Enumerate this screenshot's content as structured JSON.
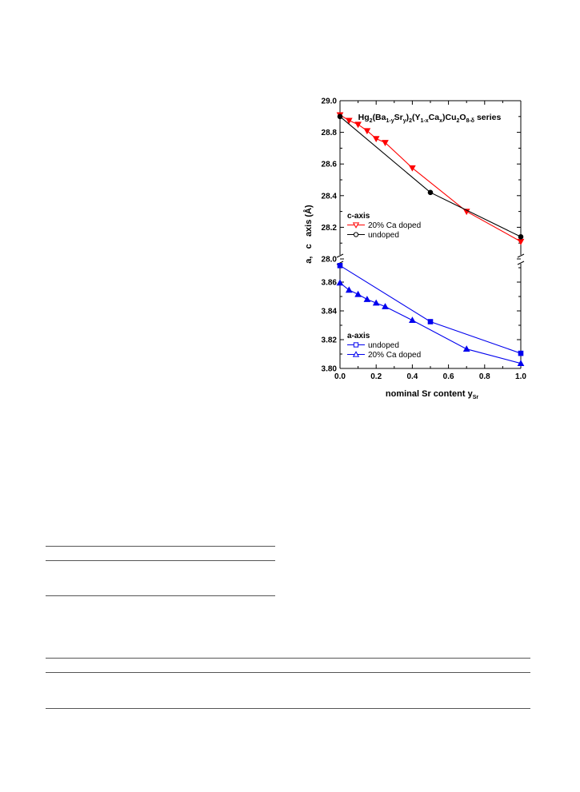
{
  "chart_data": {
    "type": "line",
    "title": {
      "parts": [
        {
          "t": "Hg"
        },
        {
          "t": "2",
          "sub": true
        },
        {
          "t": "(Ba"
        },
        {
          "t": "1-y",
          "sub": true
        },
        {
          "t": "Sr"
        },
        {
          "t": "y",
          "sub": true
        },
        {
          "t": ")"
        },
        {
          "t": "2",
          "sub": true
        },
        {
          "t": "(Y"
        },
        {
          "t": "1-x",
          "sub": true
        },
        {
          "t": "Ca"
        },
        {
          "t": "x",
          "sub": true
        },
        {
          "t": ")Cu"
        },
        {
          "t": "2",
          "sub": true
        },
        {
          "t": "O"
        },
        {
          "t": "8-δ",
          "sub": true
        },
        {
          "t": " series"
        }
      ]
    },
    "xlabel": "nominal Sr content y",
    "xlabel_sub": "Sr",
    "ylabel": "a,   c   axis (Å)",
    "xlim": [
      0.0,
      1.0
    ],
    "x_ticks": [
      "0.0",
      "0.2",
      "0.4",
      "0.6",
      "0.8",
      "1.0"
    ],
    "x_tick_values": [
      0.0,
      0.2,
      0.4,
      0.6,
      0.8,
      1.0
    ],
    "panels": [
      {
        "id": "c-axis",
        "ylim": [
          28.0,
          29.0
        ],
        "y_ticks": [
          "28.0",
          "28.2",
          "28.4",
          "28.6",
          "28.8",
          "29.0"
        ],
        "y_tick_values": [
          28.0,
          28.2,
          28.4,
          28.6,
          28.8,
          29.0
        ],
        "legend_title": "c-axis",
        "legend_placement": "bottom-left",
        "series": [
          {
            "name": "20% Ca doped",
            "color": "#ff0000",
            "marker": "triangle-down",
            "x": [
              0.0,
              0.05,
              0.1,
              0.15,
              0.2,
              0.25,
              0.4,
              0.7,
              1.0
            ],
            "y": [
              28.91,
              28.875,
              28.85,
              28.81,
              28.76,
              28.735,
              28.575,
              28.3,
              28.11
            ]
          },
          {
            "name": "undoped",
            "color": "#000000",
            "marker": "circle",
            "x": [
              0.0,
              0.5,
              1.0
            ],
            "y": [
              28.9,
              28.42,
              28.14
            ]
          }
        ]
      },
      {
        "id": "a-axis",
        "ylim": [
          3.8,
          3.875
        ],
        "y_ticks": [
          "3.80",
          "3.82",
          "3.84",
          "3.86"
        ],
        "y_tick_values": [
          3.8,
          3.82,
          3.84,
          3.86
        ],
        "legend_title": "a-axis",
        "legend_placement": "bottom-left",
        "series": [
          {
            "name": "undoped",
            "color": "#0000ee",
            "marker": "square",
            "x": [
              0.0,
              0.5,
              1.0
            ],
            "y": [
              3.8715,
              3.8325,
              3.8105
            ]
          },
          {
            "name": "20% Ca doped",
            "color": "#0000ee",
            "marker": "triangle-up",
            "x": [
              0.0,
              0.05,
              0.1,
              0.15,
              0.2,
              0.25,
              0.4,
              0.7,
              1.0
            ],
            "y": [
              3.8595,
              3.8545,
              3.8515,
              3.848,
              3.8455,
              3.843,
              3.8335,
              3.8135,
              3.8035
            ]
          }
        ]
      }
    ]
  }
}
